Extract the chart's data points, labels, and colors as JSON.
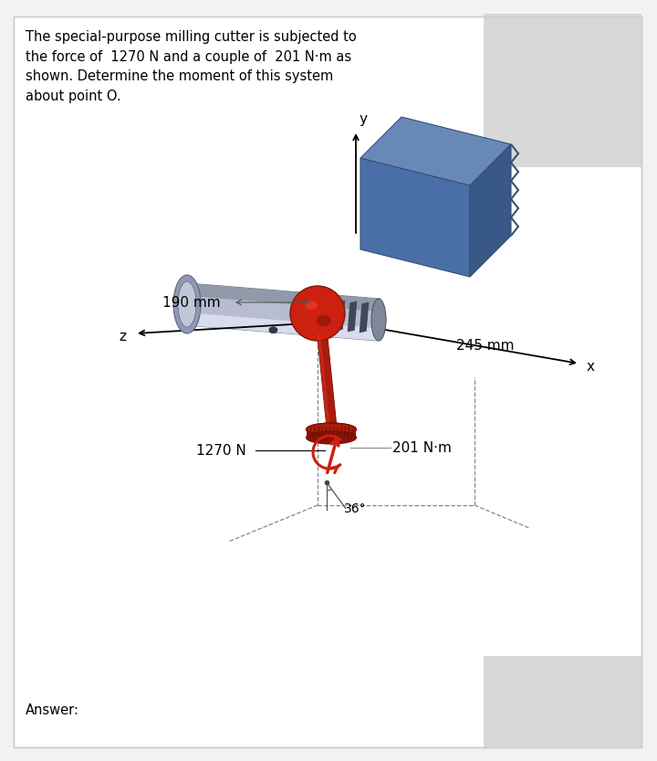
{
  "bg_color": "#f2f2f2",
  "panel_color": "#ffffff",
  "title_text": "The special-purpose milling cutter is subjected to\nthe force of  1270 N and a couple of  201 N·m as\nshown. Determine the moment of this system\nabout point O.",
  "answer_label": "Answer:",
  "dim_245": "245 mm",
  "dim_190": "190 mm",
  "label_1270": "1270 N",
  "label_201": "201 N·m",
  "label_36": "36°",
  "axis_x": "x",
  "axis_y": "y",
  "axis_z": "z",
  "blue_box_top": "#6080b0",
  "blue_box_front": "#4a6ea8",
  "blue_box_right": "#385888",
  "cyl_silver": "#b8bcd0",
  "cyl_light": "#d8dcec",
  "cyl_dark": "#707888",
  "flange_color": "#8890a8",
  "groove_color": "#404858",
  "red_bright": "#cc2010",
  "red_dark": "#881408",
  "red_mid": "#aa1c0c",
  "gray_panel": "#d8d8d8",
  "dash_color": "#888888",
  "arrow_color": "#cc2010"
}
